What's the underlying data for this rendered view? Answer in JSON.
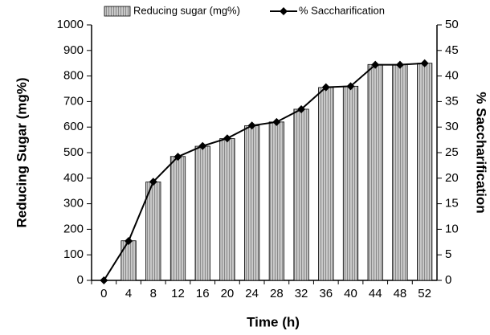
{
  "chart_data": {
    "type": "bar",
    "x_label": "Time (h)",
    "y_label": "Reducing Sugar (mg%)",
    "y2_label": "% Saccharification",
    "categories": [
      "0",
      "4",
      "8",
      "12",
      "16",
      "20",
      "24",
      "28",
      "32",
      "36",
      "40",
      "44",
      "48",
      "52"
    ],
    "series": [
      {
        "name": "Reducing sugar (mg%)",
        "type": "bar",
        "color": "#bdbdbd",
        "values": [
          0,
          155,
          385,
          485,
          525,
          555,
          605,
          620,
          670,
          755,
          760,
          845,
          845,
          850
        ]
      },
      {
        "name": "% Saccharification",
        "type": "line",
        "axis": "y2",
        "color": "#000000",
        "values": [
          0,
          7.7,
          19.3,
          24.2,
          26.3,
          27.8,
          30.3,
          31,
          33.5,
          37.8,
          38,
          42.2,
          42.2,
          42.5
        ]
      }
    ],
    "ylim": [
      0,
      1000
    ],
    "yticks": [
      0,
      100,
      200,
      300,
      400,
      500,
      600,
      700,
      800,
      900,
      1000
    ],
    "y2lim": [
      0,
      50
    ],
    "y2ticks": [
      0,
      5,
      10,
      15,
      20,
      25,
      30,
      35,
      40,
      45,
      50
    ],
    "grid": false
  }
}
